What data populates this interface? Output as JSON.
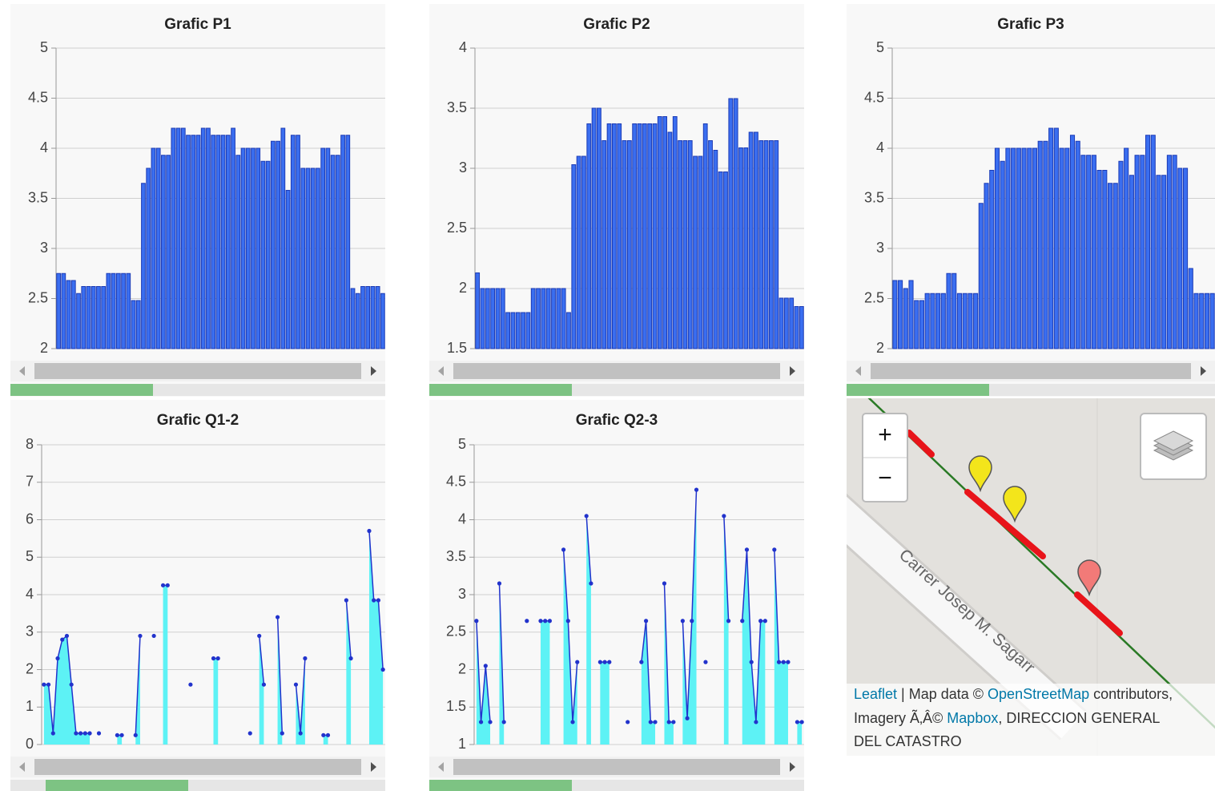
{
  "chart_data": [
    {
      "type": "bar",
      "title": "Grafic P1",
      "color": "#3a6ef0",
      "ylim": [
        2,
        5
      ],
      "yticks": [
        2,
        2.5,
        3,
        3.5,
        4,
        4.5,
        5
      ],
      "grid": true,
      "values": [
        2.75,
        2.75,
        2.68,
        2.68,
        2.55,
        2.62,
        2.62,
        2.62,
        2.62,
        2.62,
        2.75,
        2.75,
        2.75,
        2.75,
        2.75,
        2.48,
        2.48,
        3.65,
        3.8,
        4.0,
        4.0,
        3.93,
        3.93,
        4.2,
        4.2,
        4.2,
        4.13,
        4.13,
        4.13,
        4.2,
        4.2,
        4.13,
        4.13,
        4.13,
        4.13,
        4.2,
        3.93,
        4.0,
        4.0,
        4.0,
        4.0,
        3.87,
        3.87,
        4.07,
        4.07,
        4.2,
        3.58,
        4.13,
        4.13,
        3.8,
        3.8,
        3.8,
        3.8,
        4.0,
        4.0,
        3.93,
        3.93,
        4.13,
        4.13,
        2.6,
        2.55,
        2.62,
        2.62,
        2.62,
        2.62,
        2.55
      ]
    },
    {
      "type": "bar",
      "title": "Grafic P2",
      "color": "#3a6ef0",
      "ylim": [
        1.5,
        4
      ],
      "yticks": [
        1.5,
        2,
        2.5,
        3,
        3.5,
        4
      ],
      "grid": true,
      "values": [
        2.13,
        2.0,
        2.0,
        2.0,
        2.0,
        2.0,
        1.8,
        1.8,
        1.8,
        1.8,
        1.8,
        2.0,
        2.0,
        2.0,
        2.0,
        2.0,
        2.0,
        2.0,
        1.8,
        3.03,
        3.1,
        3.1,
        3.37,
        3.5,
        3.5,
        3.23,
        3.37,
        3.37,
        3.37,
        3.23,
        3.23,
        3.37,
        3.37,
        3.37,
        3.37,
        3.37,
        3.43,
        3.43,
        3.3,
        3.43,
        3.23,
        3.23,
        3.23,
        3.1,
        3.1,
        3.37,
        3.23,
        3.15,
        2.97,
        2.97,
        3.58,
        3.58,
        3.17,
        3.17,
        3.3,
        3.3,
        3.23,
        3.23,
        3.23,
        3.23,
        1.92,
        1.92,
        1.92,
        1.85,
        1.85
      ]
    },
    {
      "type": "bar",
      "title": "Grafic P3",
      "color": "#3a6ef0",
      "ylim": [
        2,
        5
      ],
      "yticks": [
        2,
        2.5,
        3,
        3.5,
        4,
        4.5,
        5
      ],
      "grid": true,
      "values": [
        2.68,
        2.68,
        2.6,
        2.68,
        2.48,
        2.48,
        2.55,
        2.55,
        2.55,
        2.55,
        2.75,
        2.75,
        2.55,
        2.55,
        2.55,
        2.55,
        3.45,
        3.65,
        3.78,
        4.0,
        3.87,
        4.0,
        4.0,
        4.0,
        4.0,
        4.0,
        4.0,
        4.07,
        4.07,
        4.2,
        4.2,
        4.0,
        4.0,
        4.13,
        4.07,
        3.93,
        3.93,
        3.93,
        3.78,
        3.78,
        3.65,
        3.65,
        3.87,
        4.0,
        3.73,
        3.93,
        3.93,
        4.13,
        4.13,
        3.73,
        3.73,
        3.93,
        3.93,
        3.8,
        3.8,
        2.8,
        2.55,
        2.55,
        2.55,
        2.55
      ]
    },
    {
      "type": "area",
      "title": "Grafic Q1-2",
      "color": "#2233cc",
      "area_color": "#5df2f5",
      "ylim": [
        0,
        8
      ],
      "yticks": [
        0,
        1,
        2,
        3,
        4,
        5,
        6,
        7,
        8
      ],
      "grid": true,
      "values": [
        1.6,
        1.6,
        0.3,
        2.3,
        2.8,
        2.9,
        1.6,
        0.3,
        0.3,
        0.3,
        0.3,
        null,
        0.3,
        null,
        null,
        null,
        0.25,
        0.25,
        null,
        null,
        0.25,
        2.9,
        null,
        null,
        2.9,
        null,
        4.25,
        4.25,
        null,
        null,
        null,
        null,
        1.6,
        null,
        null,
        null,
        null,
        2.3,
        2.3,
        null,
        null,
        null,
        null,
        null,
        null,
        0.3,
        null,
        2.9,
        1.6,
        null,
        null,
        3.4,
        0.3,
        null,
        null,
        1.6,
        0.3,
        2.3,
        null,
        null,
        null,
        0.25,
        0.25,
        null,
        null,
        null,
        3.85,
        2.3,
        null,
        null,
        null,
        5.7,
        3.85,
        3.85,
        2.0
      ]
    },
    {
      "type": "area",
      "title": "Grafic Q2-3",
      "color": "#2233cc",
      "area_color": "#5df2f5",
      "ylim": [
        1,
        5
      ],
      "yticks": [
        1,
        1.5,
        2,
        2.5,
        3,
        3.5,
        4,
        4.5,
        5
      ],
      "grid": true,
      "values": [
        2.65,
        1.3,
        2.05,
        1.3,
        null,
        3.15,
        1.3,
        null,
        null,
        null,
        null,
        2.65,
        null,
        null,
        2.65,
        2.65,
        2.65,
        null,
        null,
        3.6,
        2.65,
        1.3,
        2.1,
        null,
        4.05,
        3.15,
        null,
        2.1,
        2.1,
        2.1,
        null,
        null,
        null,
        1.3,
        null,
        null,
        2.1,
        2.65,
        1.3,
        1.3,
        null,
        3.15,
        1.3,
        1.3,
        null,
        2.65,
        1.35,
        2.65,
        4.4,
        null,
        2.1,
        null,
        null,
        null,
        4.05,
        2.65,
        null,
        null,
        2.65,
        3.6,
        2.1,
        1.3,
        2.65,
        2.65,
        null,
        3.6,
        2.1,
        2.1,
        2.1,
        null,
        1.3,
        1.3
      ]
    }
  ],
  "map": {
    "zoom_in": "+",
    "zoom_out": "−",
    "street": "Carrer Josep M. Sagarr",
    "attribution": {
      "leaflet": "Leaflet",
      "sep": " | Map data © ",
      "osm": "OpenStreetMap",
      "contrib": " contributors,",
      "imagery": "Imagery Ã‚Â© ",
      "mapbox": "Mapbox",
      "rest1": ", DIRECCION GENERAL",
      "rest2": "DEL CATASTRO"
    }
  }
}
